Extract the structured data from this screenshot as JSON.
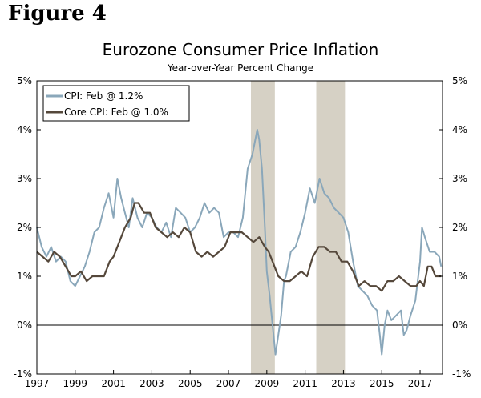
{
  "figure_label": "Figure 4",
  "chart_data": {
    "type": "line",
    "title": "Eurozone Consumer Price Inflation",
    "subtitle": "Year-over-Year Percent Change",
    "xlabel": "",
    "ylabel": "",
    "xlim": [
      1997.0,
      2018.17
    ],
    "ylim": [
      -1,
      5
    ],
    "x_ticks": [
      1997,
      1999,
      2001,
      2003,
      2005,
      2007,
      2009,
      2011,
      2013,
      2015,
      2017
    ],
    "x_tick_labels": [
      "1997",
      "1999",
      "2001",
      "2003",
      "2005",
      "2007",
      "2009",
      "2011",
      "2013",
      "2015",
      "2017"
    ],
    "y_ticks": [
      -1,
      0,
      1,
      2,
      3,
      4,
      5
    ],
    "y_tick_labels": [
      "-1%",
      "0%",
      "1%",
      "2%",
      "3%",
      "4%",
      "5%"
    ],
    "recessions": [
      [
        2008.17,
        2009.42
      ],
      [
        2011.58,
        2013.08
      ]
    ],
    "colors": {
      "cpi": "#8aa7ba",
      "core": "#55483b",
      "recession": "#d6d1c5",
      "zero_line": "#000000"
    },
    "series": [
      {
        "name": "CPI: Feb @ 1.2%",
        "key": "cpi",
        "x": [
          1997.0,
          1997.25,
          1997.5,
          1997.75,
          1998.0,
          1998.25,
          1998.5,
          1998.75,
          1999.0,
          1999.25,
          1999.5,
          1999.75,
          2000.0,
          2000.25,
          2000.5,
          2000.75,
          2001.0,
          2001.2,
          2001.4,
          2001.6,
          2001.8,
          2002.0,
          2002.25,
          2002.5,
          2002.75,
          2003.0,
          2003.25,
          2003.5,
          2003.75,
          2004.0,
          2004.25,
          2004.5,
          2004.75,
          2005.0,
          2005.25,
          2005.5,
          2005.75,
          2006.0,
          2006.25,
          2006.5,
          2006.75,
          2007.0,
          2007.25,
          2007.5,
          2007.75,
          2008.0,
          2008.25,
          2008.5,
          2008.6,
          2008.75,
          2008.9,
          2009.0,
          2009.15,
          2009.3,
          2009.45,
          2009.6,
          2009.75,
          2009.9,
          2010.0,
          2010.25,
          2010.5,
          2010.75,
          2011.0,
          2011.25,
          2011.5,
          2011.75,
          2012.0,
          2012.25,
          2012.5,
          2012.75,
          2013.0,
          2013.25,
          2013.5,
          2013.75,
          2014.0,
          2014.25,
          2014.5,
          2014.75,
          2014.9,
          2015.0,
          2015.15,
          2015.3,
          2015.5,
          2015.75,
          2016.0,
          2016.15,
          2016.3,
          2016.5,
          2016.75,
          2017.0,
          2017.1,
          2017.25,
          2017.5,
          2017.75,
          2018.0,
          2018.1
        ],
        "y": [
          2.0,
          1.6,
          1.4,
          1.6,
          1.3,
          1.4,
          1.3,
          0.9,
          0.8,
          1.0,
          1.2,
          1.5,
          1.9,
          2.0,
          2.4,
          2.7,
          2.2,
          3.0,
          2.6,
          2.3,
          2.0,
          2.6,
          2.2,
          2.0,
          2.3,
          2.2,
          2.0,
          1.9,
          2.1,
          1.8,
          2.4,
          2.3,
          2.2,
          1.9,
          2.0,
          2.2,
          2.5,
          2.3,
          2.4,
          2.3,
          1.8,
          1.9,
          1.9,
          1.8,
          2.2,
          3.2,
          3.5,
          4.0,
          3.8,
          3.2,
          2.0,
          1.1,
          0.6,
          0.0,
          -0.6,
          -0.2,
          0.2,
          0.9,
          1.0,
          1.5,
          1.6,
          1.9,
          2.3,
          2.8,
          2.5,
          3.0,
          2.7,
          2.6,
          2.4,
          2.3,
          2.2,
          1.9,
          1.3,
          0.8,
          0.7,
          0.6,
          0.4,
          0.3,
          -0.2,
          -0.6,
          0.0,
          0.3,
          0.1,
          0.2,
          0.3,
          -0.2,
          -0.1,
          0.2,
          0.5,
          1.3,
          2.0,
          1.8,
          1.5,
          1.5,
          1.4,
          1.2
        ]
      },
      {
        "name": "Core CPI: Feb @ 1.0%",
        "key": "core",
        "x": [
          1997.0,
          1997.3,
          1997.6,
          1997.9,
          1998.2,
          1998.5,
          1998.8,
          1999.0,
          1999.3,
          1999.6,
          1999.9,
          2000.2,
          2000.5,
          2000.8,
          2001.0,
          2001.3,
          2001.6,
          2001.9,
          2002.1,
          2002.3,
          2002.6,
          2002.9,
          2003.2,
          2003.5,
          2003.8,
          2004.1,
          2004.4,
          2004.7,
          2005.0,
          2005.3,
          2005.6,
          2005.9,
          2006.2,
          2006.5,
          2006.8,
          2007.1,
          2007.4,
          2007.7,
          2008.0,
          2008.3,
          2008.6,
          2008.9,
          2009.1,
          2009.3,
          2009.6,
          2009.9,
          2010.2,
          2010.5,
          2010.8,
          2011.1,
          2011.4,
          2011.7,
          2012.0,
          2012.3,
          2012.6,
          2012.9,
          2013.2,
          2013.5,
          2013.8,
          2014.1,
          2014.4,
          2014.7,
          2015.0,
          2015.3,
          2015.6,
          2015.9,
          2016.2,
          2016.5,
          2016.8,
          2017.0,
          2017.2,
          2017.4,
          2017.6,
          2017.8,
          2018.0,
          2018.1
        ],
        "y": [
          1.5,
          1.4,
          1.3,
          1.5,
          1.4,
          1.2,
          1.0,
          1.0,
          1.1,
          0.9,
          1.0,
          1.0,
          1.0,
          1.3,
          1.4,
          1.7,
          2.0,
          2.2,
          2.5,
          2.5,
          2.3,
          2.3,
          2.0,
          1.9,
          1.8,
          1.9,
          1.8,
          2.0,
          1.9,
          1.5,
          1.4,
          1.5,
          1.4,
          1.5,
          1.6,
          1.9,
          1.9,
          1.9,
          1.8,
          1.7,
          1.8,
          1.6,
          1.5,
          1.3,
          1.0,
          0.9,
          0.9,
          1.0,
          1.1,
          1.0,
          1.4,
          1.6,
          1.6,
          1.5,
          1.5,
          1.3,
          1.3,
          1.1,
          0.8,
          0.9,
          0.8,
          0.8,
          0.7,
          0.9,
          0.9,
          1.0,
          0.9,
          0.8,
          0.8,
          0.9,
          0.8,
          1.2,
          1.2,
          1.0,
          1.0,
          1.0
        ]
      }
    ]
  }
}
